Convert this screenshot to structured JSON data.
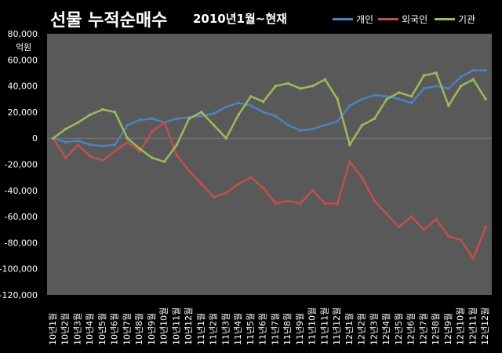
{
  "chart_data": {
    "type": "line",
    "title": "선물  누적순매수",
    "subtitle": "2010년1월~현재",
    "ylabel": "억원",
    "ylim": [
      -120000,
      80000
    ],
    "yticks": [
      80000,
      60000,
      40000,
      20000,
      0,
      -20000,
      -40000,
      -60000,
      -80000,
      -100000,
      -120000
    ],
    "ytick_labels": [
      "80,000",
      "60,000",
      "40,000",
      "20,000",
      "0",
      "-20,000",
      "-40,000",
      "-60,000",
      "-80,000",
      "-100,000",
      "-120,000"
    ],
    "categories": [
      "10년1월",
      "10년2월",
      "10년3월",
      "10년4월",
      "10년5월",
      "10년6월",
      "10년7월",
      "10년8월",
      "10년9월",
      "10년10월",
      "10년11월",
      "10년12월",
      "11년1월",
      "11년2월",
      "11년3월",
      "11년4월",
      "11년5월",
      "11년6월",
      "11년7월",
      "11년8월",
      "11년9월",
      "11년10월",
      "11년11월",
      "11년12월",
      "12년1월",
      "12년2월",
      "12년3월",
      "12년4월",
      "12년5월",
      "12년6월",
      "12년7월",
      "12년8월",
      "12년9월",
      "12년10월",
      "12년11월",
      "12년12월"
    ],
    "grid": false,
    "legend_position": "top-right",
    "series": [
      {
        "name": "개인",
        "color": "#4f81bd",
        "values": [
          0,
          -3000,
          -2000,
          -5000,
          -6000,
          -5000,
          10000,
          14000,
          15000,
          12000,
          15000,
          16000,
          17000,
          19000,
          24000,
          27000,
          25000,
          20000,
          17000,
          10000,
          6000,
          7000,
          10000,
          13000,
          25000,
          30000,
          33000,
          32000,
          30000,
          27000,
          38000,
          40000,
          38000,
          47000,
          52000,
          52000
        ]
      },
      {
        "name": "외국인",
        "color": "#c0504d",
        "values": [
          0,
          -15000,
          -5000,
          -14000,
          -17000,
          -10000,
          -3000,
          -10000,
          5000,
          12000,
          -13000,
          -25000,
          -35000,
          -45000,
          -42000,
          -35000,
          -30000,
          -38000,
          -50000,
          -48000,
          -50000,
          -40000,
          -50000,
          -50000,
          -18000,
          -30000,
          -48000,
          -58000,
          -68000,
          -60000,
          -70000,
          -62000,
          -75000,
          -78000,
          -92000,
          -68000
        ]
      },
      {
        "name": "기관",
        "color": "#9bbb59",
        "values": [
          0,
          7000,
          12000,
          18000,
          22000,
          20000,
          0,
          -8000,
          -15000,
          -18000,
          -5000,
          15000,
          20000,
          10000,
          0,
          18000,
          32000,
          28000,
          40000,
          42000,
          38000,
          40000,
          45000,
          30000,
          -5000,
          10000,
          15000,
          30000,
          35000,
          32000,
          48000,
          50000,
          25000,
          40000,
          45000,
          30000
        ]
      }
    ]
  }
}
